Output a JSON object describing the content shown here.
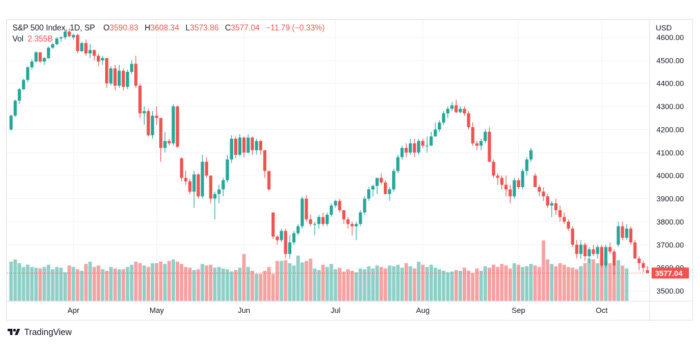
{
  "legend": {
    "symbol": "S&P 500 Index, 1D, SP",
    "open_label": "O",
    "open": "3590.83",
    "high_label": "H",
    "high": "3608.34",
    "low_label": "L",
    "low": "3573.86",
    "close_label": "C",
    "close": "3577.04",
    "change": "−11.79 (−0.33%)",
    "vol_label": "Vol",
    "vol": "2.355B"
  },
  "currency": "USD",
  "branding": {
    "logo_text": "TradingView",
    "logo_icon": "tradingview-logo-icon"
  },
  "colors": {
    "up": "#26a69a",
    "down": "#ef5350",
    "up_volume": "#8fcfc7",
    "down_volume": "#f4a3a2",
    "grid": "#f0f3fa",
    "axis_text": "#131722",
    "price_label_bg": "#ef5350"
  },
  "chart_data": {
    "type": "candlestick",
    "title": "S&P 500 Index, 1D, SP",
    "y_axis_label": "USD",
    "ylim": [
      3455,
      4675
    ],
    "y_ticks": [
      3500,
      3600,
      3700,
      3800,
      3900,
      4000,
      4100,
      4200,
      4300,
      4400,
      4500,
      4600
    ],
    "x_tick_labels": [
      "Apr",
      "May",
      "Jun",
      "Jul",
      "Aug",
      "Sep",
      "Oct"
    ],
    "x_tick_bar_index": [
      15,
      35,
      56,
      78,
      99,
      122,
      142
    ],
    "last_price": "3577.04",
    "grid": true,
    "ohlc": [
      [
        4200,
        4265,
        4195,
        4260
      ],
      [
        4260,
        4330,
        4255,
        4325
      ],
      [
        4325,
        4380,
        4310,
        4375
      ],
      [
        4375,
        4420,
        4370,
        4415
      ],
      [
        4415,
        4475,
        4405,
        4470
      ],
      [
        4470,
        4505,
        4460,
        4495
      ],
      [
        4495,
        4540,
        4490,
        4535
      ],
      [
        4535,
        4535,
        4490,
        4495
      ],
      [
        4495,
        4515,
        4480,
        4510
      ],
      [
        4510,
        4560,
        4505,
        4555
      ],
      [
        4555,
        4575,
        4550,
        4570
      ],
      [
        4570,
        4600,
        4565,
        4595
      ],
      [
        4595,
        4605,
        4580,
        4600
      ],
      [
        4600,
        4630,
        4590,
        4625
      ],
      [
        4625,
        4640,
        4600,
        4605
      ],
      [
        4600,
        4615,
        4590,
        4610
      ],
      [
        4610,
        4615,
        4530,
        4540
      ],
      [
        4540,
        4580,
        4535,
        4575
      ],
      [
        4575,
        4590,
        4520,
        4530
      ],
      [
        4530,
        4570,
        4510,
        4545
      ],
      [
        4545,
        4545,
        4500,
        4520
      ],
      [
        4520,
        4530,
        4475,
        4495
      ],
      [
        4500,
        4520,
        4480,
        4510
      ],
      [
        4510,
        4510,
        4380,
        4400
      ],
      [
        4400,
        4475,
        4390,
        4465
      ],
      [
        4465,
        4480,
        4370,
        4390
      ],
      [
        4390,
        4480,
        4380,
        4455
      ],
      [
        4455,
        4465,
        4370,
        4385
      ],
      [
        4385,
        4460,
        4375,
        4450
      ],
      [
        4450,
        4500,
        4440,
        4485
      ],
      [
        4485,
        4520,
        4380,
        4390
      ],
      [
        4390,
        4400,
        4250,
        4270
      ],
      [
        4270,
        4300,
        4220,
        4280
      ],
      [
        4280,
        4290,
        4170,
        4175
      ],
      [
        4175,
        4280,
        4160,
        4260
      ],
      [
        4260,
        4300,
        4220,
        4250
      ],
      [
        4250,
        4250,
        4060,
        4120
      ],
      [
        4120,
        4190,
        4100,
        4150
      ],
      [
        4150,
        4160,
        4130,
        4140
      ],
      [
        4140,
        4310,
        4130,
        4300
      ],
      [
        4300,
        4305,
        4120,
        4125
      ],
      [
        4075,
        4080,
        3975,
        3990
      ],
      [
        3990,
        4020,
        3960,
        3975
      ],
      [
        3975,
        3985,
        3920,
        3930
      ],
      [
        3930,
        4020,
        3860,
        4005
      ],
      [
        4005,
        4010,
        3900,
        3910
      ],
      [
        3910,
        4090,
        3900,
        4060
      ],
      [
        4060,
        4080,
        3990,
        4000
      ],
      [
        4000,
        3990,
        3880,
        3900
      ],
      [
        3900,
        3930,
        3810,
        3920
      ],
      [
        3920,
        3960,
        3880,
        3940
      ],
      [
        3940,
        3990,
        3910,
        3980
      ],
      [
        3980,
        4090,
        3970,
        4070
      ],
      [
        4070,
        4175,
        4055,
        4160
      ],
      [
        4160,
        4170,
        4075,
        4090
      ],
      [
        4090,
        4180,
        4085,
        4165
      ],
      [
        4165,
        4170,
        4080,
        4100
      ],
      [
        4100,
        4180,
        4095,
        4165
      ],
      [
        4165,
        4170,
        4090,
        4110
      ],
      [
        4110,
        4160,
        4090,
        4150
      ],
      [
        4150,
        4155,
        4090,
        4110
      ],
      [
        4110,
        4110,
        3990,
        4020
      ],
      [
        4020,
        4020,
        3935,
        3940
      ],
      [
        3840,
        3840,
        3725,
        3735
      ],
      [
        3735,
        3740,
        3700,
        3720
      ],
      [
        3720,
        3770,
        3710,
        3760
      ],
      [
        3760,
        3770,
        3640,
        3660
      ],
      [
        3660,
        3740,
        3640,
        3710
      ],
      [
        3710,
        3760,
        3700,
        3750
      ],
      [
        3750,
        3790,
        3740,
        3780
      ],
      [
        3780,
        3910,
        3770,
        3900
      ],
      [
        3900,
        3915,
        3800,
        3810
      ],
      [
        3810,
        3830,
        3780,
        3790
      ],
      [
        3790,
        3800,
        3740,
        3790
      ],
      [
        3790,
        3830,
        3770,
        3820
      ],
      [
        3820,
        3840,
        3780,
        3790
      ],
      [
        3790,
        3840,
        3780,
        3830
      ],
      [
        3830,
        3880,
        3820,
        3870
      ],
      [
        3870,
        3895,
        3860,
        3890
      ],
      [
        3890,
        3900,
        3840,
        3850
      ],
      [
        3850,
        3850,
        3790,
        3810
      ],
      [
        3810,
        3820,
        3770,
        3790
      ],
      [
        3790,
        3800,
        3740,
        3780
      ],
      [
        3780,
        3800,
        3720,
        3790
      ],
      [
        3790,
        3850,
        3780,
        3840
      ],
      [
        3840,
        3910,
        3830,
        3900
      ],
      [
        3900,
        3950,
        3890,
        3940
      ],
      [
        3940,
        3960,
        3910,
        3955
      ],
      [
        3955,
        3990,
        3920,
        3990
      ],
      [
        3990,
        4010,
        3960,
        3970
      ],
      [
        3970,
        3980,
        3920,
        3920
      ],
      [
        3920,
        3950,
        3890,
        3940
      ],
      [
        3940,
        4030,
        3930,
        4020
      ],
      [
        4020,
        4090,
        4010,
        4080
      ],
      [
        4080,
        4130,
        4070,
        4120
      ],
      [
        4120,
        4140,
        4080,
        4100
      ],
      [
        4100,
        4160,
        4090,
        4140
      ],
      [
        4140,
        4160,
        4080,
        4100
      ],
      [
        4100,
        4160,
        4090,
        4150
      ],
      [
        4150,
        4160,
        4120,
        4130
      ],
      [
        4130,
        4170,
        4100,
        4130
      ],
      [
        4130,
        4190,
        4130,
        4170
      ],
      [
        4170,
        4230,
        4170,
        4200
      ],
      [
        4200,
        4240,
        4190,
        4230
      ],
      [
        4230,
        4280,
        4220,
        4270
      ],
      [
        4270,
        4300,
        4250,
        4290
      ],
      [
        4290,
        4320,
        4280,
        4305
      ],
      [
        4305,
        4330,
        4270,
        4275
      ],
      [
        4275,
        4300,
        4270,
        4290
      ],
      [
        4290,
        4300,
        4260,
        4270
      ],
      [
        4270,
        4280,
        4200,
        4210
      ],
      [
        4210,
        4230,
        4130,
        4140
      ],
      [
        4140,
        4150,
        4110,
        4130
      ],
      [
        4130,
        4160,
        4110,
        4150
      ],
      [
        4150,
        4200,
        4140,
        4190
      ],
      [
        4190,
        4210,
        4060,
        4060
      ],
      [
        4060,
        4070,
        3990,
        4000
      ],
      [
        4000,
        4010,
        3960,
        3990
      ],
      [
        3990,
        4000,
        3940,
        3960
      ],
      [
        3960,
        4000,
        3910,
        3940
      ],
      [
        3940,
        3960,
        3880,
        3910
      ],
      [
        3910,
        3990,
        3900,
        3980
      ],
      [
        3980,
        3990,
        3940,
        3950
      ],
      [
        3950,
        4030,
        3940,
        4020
      ],
      [
        4020,
        4080,
        4000,
        4070
      ],
      [
        4070,
        4120,
        4060,
        4110
      ],
      [
        4000,
        4010,
        3950,
        3950
      ],
      [
        3950,
        3960,
        3910,
        3930
      ],
      [
        3930,
        3950,
        3890,
        3910
      ],
      [
        3910,
        3920,
        3860,
        3870
      ],
      [
        3870,
        3890,
        3820,
        3880
      ],
      [
        3880,
        3900,
        3830,
        3850
      ],
      [
        3850,
        3870,
        3800,
        3820
      ],
      [
        3820,
        3840,
        3790,
        3800
      ],
      [
        3800,
        3810,
        3760,
        3770
      ],
      [
        3770,
        3780,
        3690,
        3700
      ],
      [
        3700,
        3720,
        3640,
        3660
      ],
      [
        3660,
        3720,
        3640,
        3700
      ],
      [
        3700,
        3710,
        3630,
        3650
      ],
      [
        3650,
        3690,
        3620,
        3680
      ],
      [
        3680,
        3700,
        3650,
        3660
      ],
      [
        3660,
        3700,
        3640,
        3690
      ],
      [
        3690,
        3700,
        3600,
        3610
      ],
      [
        3610,
        3700,
        3600,
        3690
      ],
      [
        3690,
        3710,
        3660,
        3670
      ],
      [
        3670,
        3680,
        3570,
        3610
      ],
      [
        3700,
        3800,
        3690,
        3780
      ],
      [
        3780,
        3800,
        3720,
        3730
      ],
      [
        3730,
        3790,
        3720,
        3770
      ],
      [
        3770,
        3780,
        3700,
        3710
      ],
      [
        3710,
        3720,
        3640,
        3640
      ],
      [
        3640,
        3650,
        3590,
        3620
      ],
      [
        3620,
        3630,
        3580,
        3600
      ],
      [
        3590,
        3608,
        3574,
        3577
      ]
    ],
    "volume_scale_note": "relative",
    "volume": [
      0.52,
      0.55,
      0.5,
      0.45,
      0.48,
      0.45,
      0.44,
      0.43,
      0.45,
      0.48,
      0.42,
      0.45,
      0.44,
      0.38,
      0.47,
      0.45,
      0.42,
      0.4,
      0.49,
      0.52,
      0.45,
      0.47,
      0.42,
      0.4,
      0.45,
      0.43,
      0.42,
      0.42,
      0.45,
      0.48,
      0.52,
      0.5,
      0.47,
      0.45,
      0.5,
      0.5,
      0.52,
      0.49,
      0.53,
      0.55,
      0.52,
      0.49,
      0.45,
      0.44,
      0.41,
      0.42,
      0.49,
      0.47,
      0.48,
      0.44,
      0.45,
      0.43,
      0.42,
      0.39,
      0.41,
      0.44,
      0.62,
      0.45,
      0.4,
      0.36,
      0.36,
      0.4,
      0.45,
      0.36,
      0.53,
      0.53,
      0.54,
      0.5,
      0.47,
      0.6,
      0.51,
      0.53,
      0.56,
      0.43,
      0.41,
      0.48,
      0.45,
      0.49,
      0.42,
      0.44,
      0.39,
      0.42,
      0.4,
      0.38,
      0.43,
      0.42,
      0.46,
      0.43,
      0.47,
      0.45,
      0.43,
      0.47,
      0.46,
      0.48,
      0.44,
      0.5,
      0.46,
      0.43,
      0.52,
      0.48,
      0.45,
      0.48,
      0.44,
      0.42,
      0.4,
      0.38,
      0.39,
      0.41,
      0.4,
      0.44,
      0.4,
      0.37,
      0.43,
      0.4,
      0.46,
      0.44,
      0.48,
      0.45,
      0.49,
      0.47,
      0.43,
      0.5,
      0.48,
      0.45,
      0.46,
      0.49,
      0.47,
      0.45,
      0.8,
      0.55,
      0.49,
      0.46,
      0.5,
      0.48,
      0.45,
      0.44,
      0.42,
      0.46,
      0.5,
      0.56,
      0.55,
      0.5,
      0.55,
      0.52,
      0.5,
      0.48,
      0.54,
      0.47,
      0.43
    ]
  }
}
